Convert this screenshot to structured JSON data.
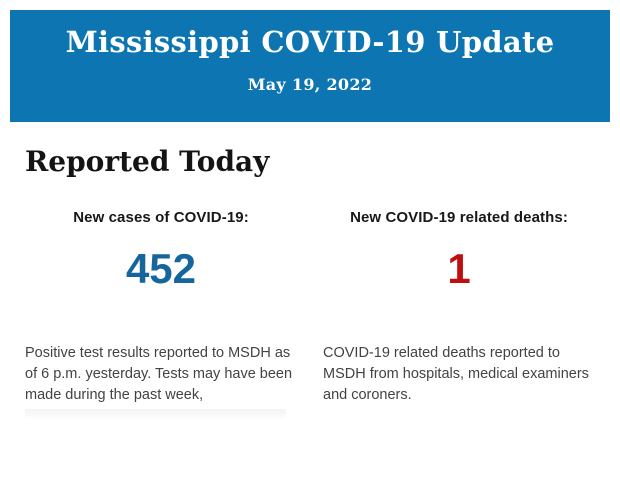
{
  "header": {
    "title": "Mississippi COVID-19 Update",
    "date": "May 19, 2022",
    "background_color": "#0d76b2",
    "text_color": "#ffffff"
  },
  "section": {
    "heading": "Reported Today"
  },
  "stats": [
    {
      "label": "New cases of COVID-19:",
      "value": "452",
      "value_color": "#16669d",
      "description": "Positive test results reported to MSDH as of 6 p.m. yesterday. Tests may have been made during the past week,"
    },
    {
      "label": "New COVID-19 related deaths:",
      "value": "1",
      "value_color": "#c00d0d",
      "description": "COVID-19 related deaths reported to MSDH from hospitals, medical examiners and coroners."
    }
  ]
}
